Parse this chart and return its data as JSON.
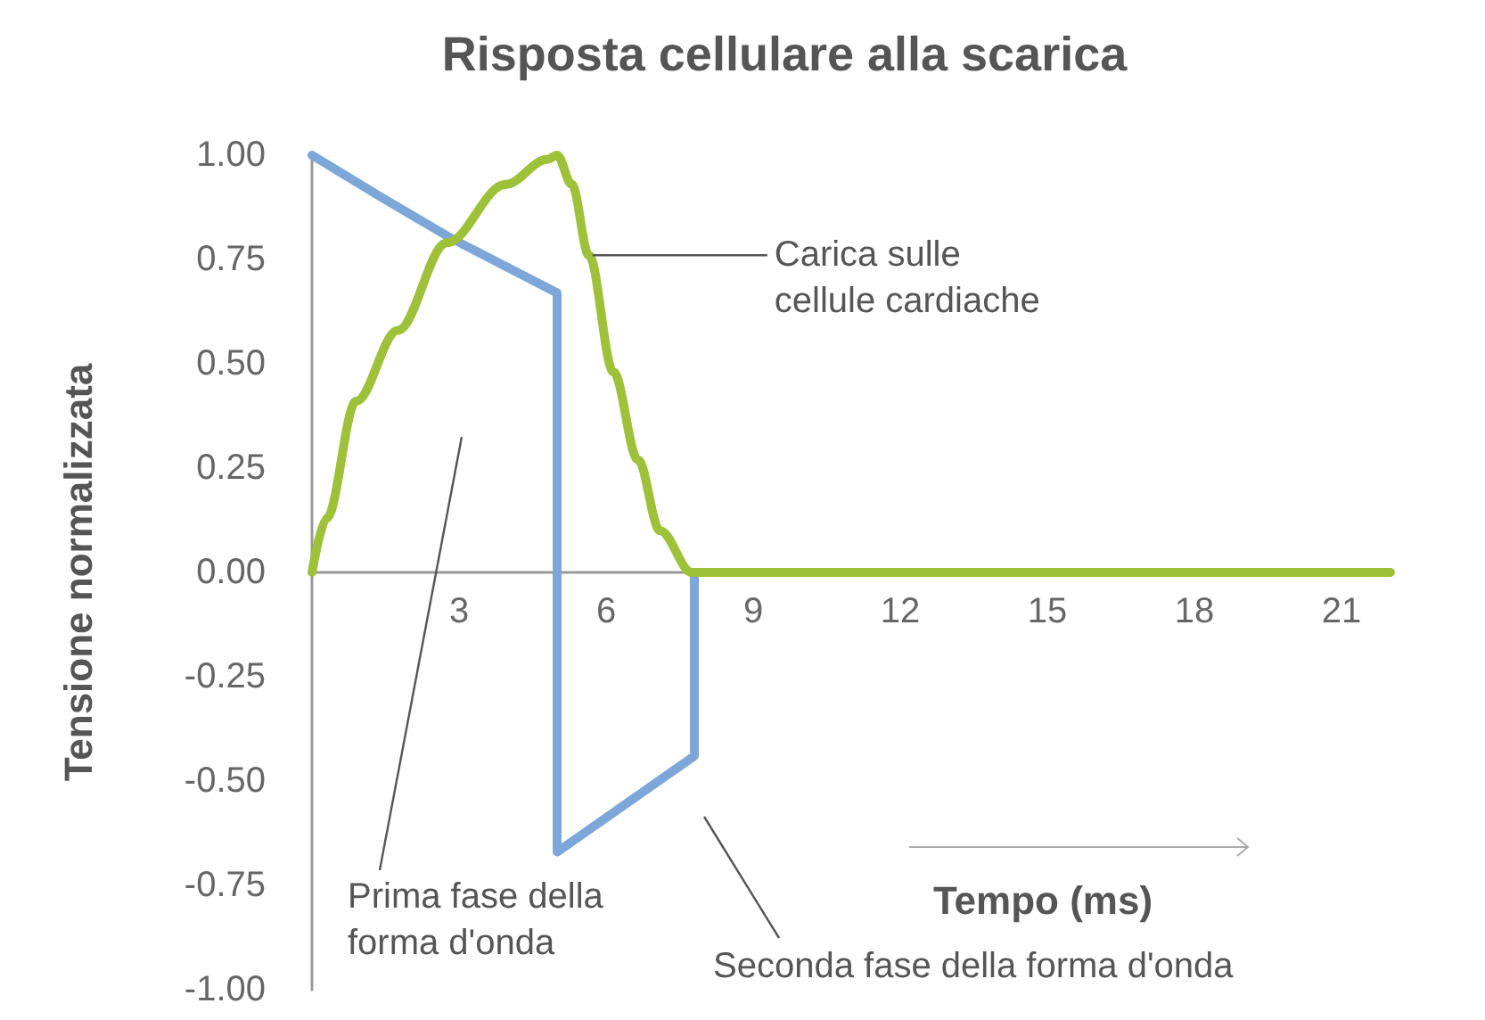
{
  "chart_data": {
    "type": "line",
    "title": "Risposta cellulare alla scarica",
    "xlabel": "Tempo (ms)",
    "ylabel": "Tensione normalizzata",
    "xlim": [
      0,
      22
    ],
    "xticks": [
      3,
      6,
      9,
      12,
      15,
      18,
      21
    ],
    "ylim": [
      -1,
      1
    ],
    "yticks": [
      {
        "value": -1,
        "label": "-1.00"
      },
      {
        "value": -0.75,
        "label": "-0.75"
      },
      {
        "value": -0.5,
        "label": "-0.50"
      },
      {
        "value": -0.25,
        "label": "-0.25"
      },
      {
        "value": 0,
        "label": "0.00"
      },
      {
        "value": 0.25,
        "label": "0.25"
      },
      {
        "value": 0.5,
        "label": "0.50"
      },
      {
        "value": 0.75,
        "label": "0.75"
      },
      {
        "value": 1,
        "label": "1.00"
      }
    ],
    "grid": false,
    "legend": false,
    "marker": "none",
    "series": [
      {
        "color": "#7da7d9",
        "x": [
          0,
          1.4,
          2.85,
          5,
          5,
          7.8,
          7.8
        ],
        "values": [
          1,
          0.9,
          0.8,
          0.67,
          -0.67,
          -0.44,
          0
        ]
      },
      {
        "name": "Carica sulle cellule cardiache",
        "color": "#9dc23a",
        "x": [
          0,
          0.3,
          0.9,
          1.75,
          2.75,
          3.95,
          4.8,
          5,
          5.3,
          5.65,
          6.15,
          6.65,
          7.1,
          7.75,
          22
        ],
        "values": [
          0,
          0.13,
          0.41,
          0.58,
          0.79,
          0.93,
          0.99,
          1,
          0.93,
          0.76,
          0.48,
          0.27,
          0.1,
          0,
          0
        ]
      }
    ],
    "annotations": [
      "Prima fase della forma d'onda",
      "Seconda fase della forma d'onda"
    ]
  }
}
